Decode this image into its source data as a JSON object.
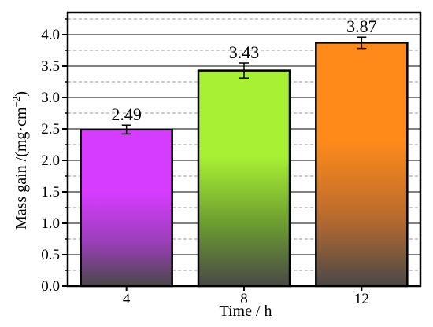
{
  "chart_data": {
    "type": "bar",
    "categories": [
      "4",
      "8",
      "12"
    ],
    "values": [
      2.49,
      3.43,
      3.87
    ],
    "errors": [
      0.07,
      0.12,
      0.09
    ],
    "data_labels": [
      "2.49",
      "3.43",
      "3.87"
    ],
    "xlabel": "Time / h",
    "ylabel_main": "Mass gain /(mg·cm",
    "ylabel_sup": "−2",
    "ylabel_close": ")",
    "ylim": [
      0,
      4.35
    ],
    "yticks": [
      0.0,
      0.5,
      1.0,
      1.5,
      2.0,
      2.5,
      3.0,
      3.5,
      4.0
    ],
    "ytick_labels": [
      "0.0",
      "0.5",
      "1.0",
      "1.5",
      "2.0",
      "2.5",
      "3.0",
      "3.5",
      "4.0"
    ],
    "grid": {
      "major": "solid",
      "minor": "dashed"
    },
    "bar_colors": [
      {
        "top": "#d63cff",
        "mid": "#9a3fb8",
        "bottom": "#4a4848"
      },
      {
        "top": "#a8f034",
        "mid": "#6a9a30",
        "bottom": "#4a4848"
      },
      {
        "top": "#ff8a1a",
        "mid": "#b86a2e",
        "bottom": "#4a4848"
      }
    ]
  }
}
